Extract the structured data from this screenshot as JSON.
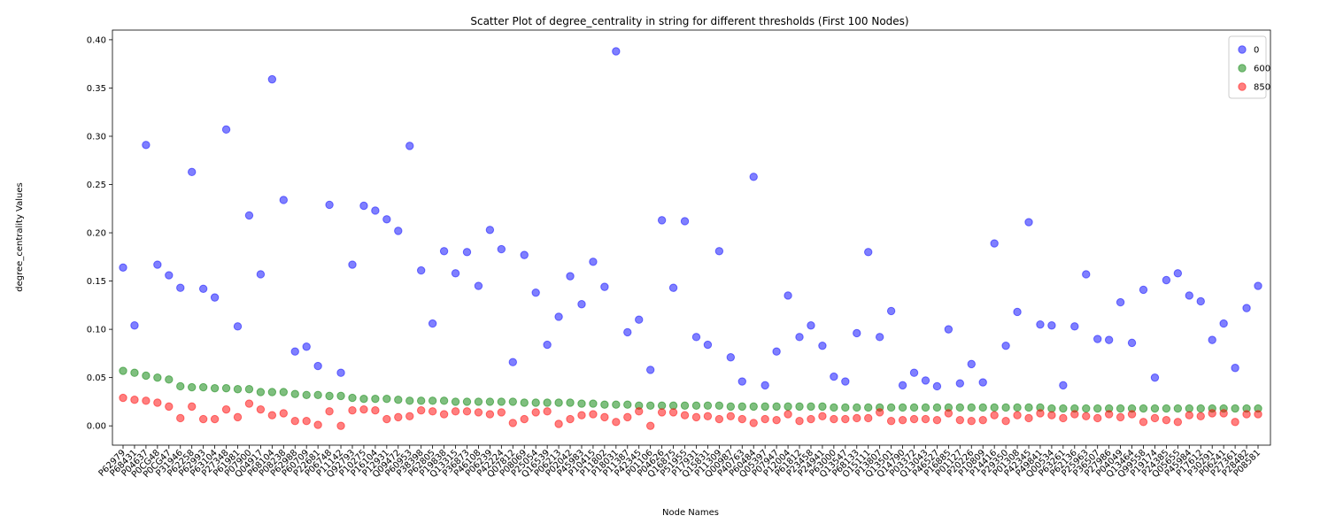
{
  "chart_data": {
    "type": "scatter",
    "title": "Scatter Plot of degree_centrality in string for different thresholds (First 100 Nodes)",
    "xlabel": "Node Names",
    "ylabel": "degree_centrality Values",
    "ylim": [
      -0.02,
      0.41
    ],
    "yticks": [
      0.0,
      0.05,
      0.1,
      0.15,
      0.2,
      0.25,
      0.3,
      0.35,
      0.4
    ],
    "ytick_labels": [
      "0.00",
      "0.05",
      "0.10",
      "0.15",
      "0.20",
      "0.25",
      "0.30",
      "0.35",
      "0.40"
    ],
    "grid": false,
    "legend_position": "top-right",
    "categories": [
      "P62979",
      "P68431",
      "P04637",
      "P0CG48",
      "P0CG47",
      "P31946",
      "P62258",
      "P62993",
      "P63104",
      "P27348",
      "P61981",
      "P07900",
      "Q04917",
      "P68104",
      "P08238",
      "P62988",
      "P60709",
      "P22681",
      "P06748",
      "P11142",
      "Q92793",
      "P10275",
      "P16104",
      "P12931",
      "Q09472",
      "P60953",
      "P38398",
      "P62805",
      "P19838",
      "Q13315",
      "P36873",
      "P46108",
      "P06239",
      "P42224",
      "Q07812",
      "P08069",
      "P25054",
      "Q16539",
      "P06213",
      "P02042",
      "P45983",
      "P10415",
      "P11802",
      "P18031",
      "P11387",
      "P42345",
      "P01106",
      "P04626",
      "Q16875",
      "P51955",
      "P17931",
      "Q15831",
      "P11309",
      "Q00987",
      "P40763",
      "P60484",
      "Q05397",
      "P07947",
      "P12004",
      "P61812",
      "P23458",
      "P24941",
      "P63000",
      "Q13547",
      "P68133",
      "O15111",
      "P13807",
      "Q13501",
      "Q14790",
      "P03372",
      "Q13043",
      "P46527",
      "P16885",
      "P01127",
      "P20226",
      "P10809",
      "P14416",
      "P29350",
      "P01308",
      "P42345b",
      "P49841",
      "Q00534",
      "P63261",
      "P62136",
      "P25963",
      "P36507",
      "P27986",
      "P04049",
      "Q13464",
      "Q99558",
      "P19174",
      "P24385",
      "Q05655",
      "P45984",
      "P17612",
      "P30291",
      "P06241",
      "P27361",
      "P28482",
      "P08581"
    ],
    "tick_labels": [
      "P62979",
      "P68431",
      "P04637",
      "P0CG48",
      "P0CG47",
      "P31946",
      "P62258",
      "P62993",
      "P63104",
      "P27348",
      "P61981",
      "P07900",
      "Q04917",
      "P68104",
      "P08238",
      "P62988",
      "P60709",
      "P22681",
      "P06748",
      "P11142",
      "Q92793",
      "P10275",
      "P16104",
      "P12931",
      "Q09472",
      "P60953",
      "P38398",
      "P62805",
      "P19838",
      "Q13315",
      "P36873",
      "P46108",
      "P06239",
      "P42224",
      "Q07812",
      "P08069",
      "P25054",
      "Q16539",
      "P06213",
      "P02042",
      "P45983",
      "P10415",
      "P11802",
      "P18031",
      "P11387",
      "P42345",
      "P01106",
      "P04626",
      "Q16875",
      "P51955",
      "P17931",
      "Q15831",
      "P11309",
      "Q00987",
      "P40763",
      "P60484",
      "Q05397",
      "P07947",
      "P12004",
      "P61812",
      "P23458",
      "P24941",
      "P63000",
      "Q13547",
      "P68133",
      "O15111",
      "P13807",
      "Q13501",
      "Q14790",
      "P03372",
      "Q13043",
      "P46527",
      "P16885",
      "P01127",
      "P20226",
      "P10809",
      "P14416",
      "P29350",
      "P01308",
      "P42345",
      "P49841",
      "Q00534",
      "P63261",
      "P62136",
      "P25963",
      "P36507",
      "P27986",
      "P04049",
      "Q13464",
      "Q99558",
      "P19174",
      "P24385",
      "Q05655",
      "P45984",
      "P17612",
      "P30291",
      "P06241",
      "P27361",
      "P28482",
      "P08581"
    ],
    "series": [
      {
        "name": "0",
        "color": "#0000ff",
        "values": [
          0.164,
          0.104,
          0.291,
          0.167,
          0.156,
          0.143,
          0.263,
          0.142,
          0.133,
          0.307,
          0.103,
          0.218,
          0.157,
          0.359,
          0.234,
          0.077,
          0.082,
          0.062,
          0.229,
          0.055,
          0.167,
          0.228,
          0.223,
          0.214,
          0.202,
          0.29,
          0.161,
          0.106,
          0.181,
          0.158,
          0.18,
          0.145,
          0.203,
          0.183,
          0.066,
          0.177,
          0.138,
          0.084,
          0.113,
          0.155,
          0.126,
          0.17,
          0.144,
          0.388,
          0.097,
          0.11,
          0.058,
          0.213,
          0.143,
          0.212,
          0.092,
          0.084,
          0.181,
          0.071,
          0.046,
          0.258,
          0.042,
          0.077,
          0.135,
          0.092,
          0.104,
          0.083,
          0.051,
          0.046,
          0.096,
          0.18,
          0.092,
          0.119,
          0.042,
          0.055,
          0.047,
          0.041,
          0.1,
          0.044,
          0.064,
          0.045,
          0.189,
          0.083,
          0.118,
          0.211,
          0.105,
          0.104,
          0.042,
          0.103,
          0.157,
          0.09,
          0.089,
          0.128,
          0.086,
          0.141,
          0.05,
          0.151,
          0.158,
          0.135,
          0.129,
          0.089,
          0.106,
          0.06,
          0.122,
          0.145
        ]
      },
      {
        "name": "600",
        "color": "#008000",
        "values": [
          0.057,
          0.055,
          0.052,
          0.05,
          0.048,
          0.041,
          0.04,
          0.04,
          0.039,
          0.039,
          0.038,
          0.038,
          0.035,
          0.035,
          0.035,
          0.033,
          0.032,
          0.032,
          0.031,
          0.031,
          0.029,
          0.028,
          0.028,
          0.028,
          0.027,
          0.026,
          0.026,
          0.026,
          0.026,
          0.025,
          0.025,
          0.025,
          0.025,
          0.025,
          0.025,
          0.024,
          0.024,
          0.024,
          0.024,
          0.024,
          0.023,
          0.023,
          0.022,
          0.022,
          0.022,
          0.021,
          0.021,
          0.021,
          0.021,
          0.021,
          0.021,
          0.021,
          0.021,
          0.02,
          0.02,
          0.02,
          0.02,
          0.02,
          0.02,
          0.02,
          0.02,
          0.02,
          0.019,
          0.019,
          0.019,
          0.019,
          0.019,
          0.019,
          0.019,
          0.019,
          0.019,
          0.019,
          0.019,
          0.019,
          0.019,
          0.019,
          0.019,
          0.019,
          0.019,
          0.019,
          0.019,
          0.018,
          0.018,
          0.018,
          0.018,
          0.018,
          0.018,
          0.018,
          0.018,
          0.018,
          0.018,
          0.018,
          0.018,
          0.018,
          0.018,
          0.018,
          0.018,
          0.018,
          0.018,
          0.018
        ]
      },
      {
        "name": "850",
        "color": "#ff0000",
        "values": [
          0.029,
          0.027,
          0.026,
          0.024,
          0.02,
          0.008,
          0.02,
          0.007,
          0.007,
          0.017,
          0.009,
          0.023,
          0.017,
          0.011,
          0.013,
          0.005,
          0.005,
          0.001,
          0.015,
          0.0,
          0.016,
          0.017,
          0.016,
          0.007,
          0.009,
          0.01,
          0.016,
          0.015,
          0.012,
          0.015,
          0.015,
          0.014,
          0.012,
          0.014,
          0.003,
          0.007,
          0.014,
          0.015,
          0.002,
          0.007,
          0.011,
          0.012,
          0.009,
          0.004,
          0.009,
          0.015,
          0.0,
          0.014,
          0.014,
          0.011,
          0.009,
          0.01,
          0.007,
          0.01,
          0.007,
          0.003,
          0.007,
          0.006,
          0.012,
          0.005,
          0.007,
          0.01,
          0.007,
          0.007,
          0.008,
          0.008,
          0.014,
          0.005,
          0.006,
          0.007,
          0.007,
          0.006,
          0.013,
          0.006,
          0.005,
          0.006,
          0.011,
          0.005,
          0.011,
          0.008,
          0.013,
          0.011,
          0.008,
          0.012,
          0.01,
          0.008,
          0.012,
          0.009,
          0.012,
          0.004,
          0.008,
          0.006,
          0.004,
          0.011,
          0.01,
          0.013,
          0.013,
          0.004,
          0.012,
          0.012
        ]
      }
    ]
  }
}
